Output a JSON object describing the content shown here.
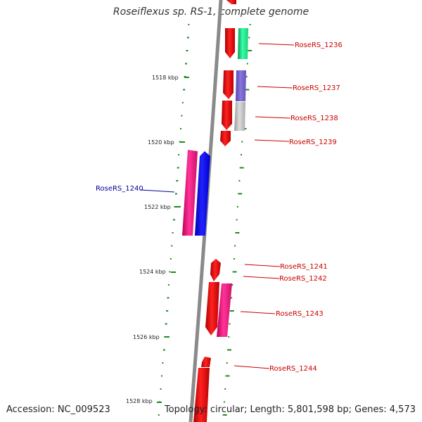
{
  "title": "Roseiflexus sp. RS-1, complete genome",
  "footer": {
    "accession": "Accession: NC_009523",
    "topology": "Topology: circular; Length: 5,801,598 bp; Genes: 4,573"
  },
  "scale_labels": [
    "1518 kbp",
    "1520 kbp",
    "1522 kbp",
    "1524 kbp",
    "1526 kbp",
    "1528 kbp"
  ],
  "gene_labels": [
    {
      "text": "RoseRS_1236",
      "color": "#cc0000"
    },
    {
      "text": "RoseRS_1237",
      "color": "#cc0000"
    },
    {
      "text": "RoseRS_1238",
      "color": "#cc0000"
    },
    {
      "text": "RoseRS_1239",
      "color": "#cc0000"
    },
    {
      "text": "RoseRS_1240",
      "color": "#000099"
    },
    {
      "text": "RoseRS_1241",
      "color": "#cc0000"
    },
    {
      "text": "RoseRS_1242",
      "color": "#cc0000"
    },
    {
      "text": "RoseRS_1243",
      "color": "#cc0000"
    },
    {
      "text": "RoseRS_1244",
      "color": "#cc0000"
    }
  ],
  "colors": {
    "backbone": "#8a8a8a",
    "gc_ticks": "#1e8a1e",
    "gene_red": "#ee0000",
    "gene_green": "#22dd88",
    "gene_purple": "#7766cc",
    "gene_gray": "#bbbbbb",
    "gene_pink": "#ee1177",
    "gene_blue": "#0000ee"
  }
}
